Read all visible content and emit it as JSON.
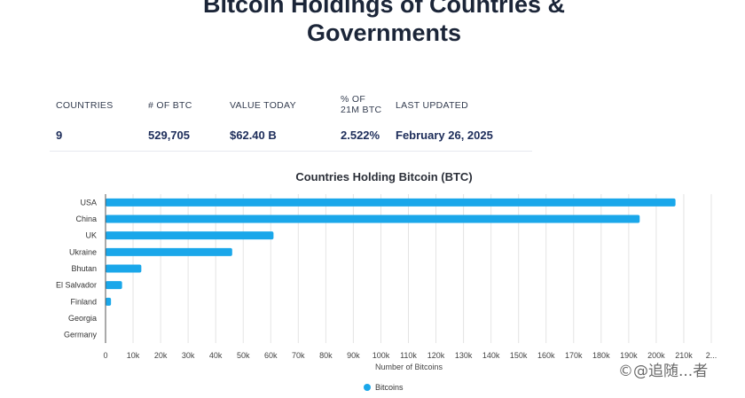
{
  "page": {
    "title_line1": "Bitcoin Holdings of Countries &",
    "title_line2": "Governments"
  },
  "stats": {
    "headers": {
      "countries": "COUNTRIES",
      "btc": "# OF BTC",
      "value": "VALUE TODAY",
      "pct_line1": "% OF",
      "pct_line2": "21M BTC",
      "updated": "LAST UPDATED"
    },
    "values": {
      "countries": "9",
      "btc": "529,705",
      "value": "$62.40 B",
      "pct": "2.522%",
      "updated": "February 26, 2025"
    }
  },
  "chart_data": {
    "type": "bar",
    "orientation": "horizontal",
    "title": "Countries Holding Bitcoin (BTC)",
    "xlabel": "Number of Bitcoins",
    "ylabel": "",
    "categories": [
      "USA",
      "China",
      "UK",
      "Ukraine",
      "Bhutan",
      "El Salvador",
      "Finland",
      "Georgia",
      "Germany"
    ],
    "series": [
      {
        "name": "Bitcoins",
        "values": [
          207000,
          194000,
          61000,
          46000,
          13000,
          6000,
          1981,
          66,
          0
        ]
      }
    ],
    "xlim": [
      0,
      220000
    ],
    "xticks": [
      "0",
      "10k",
      "20k",
      "30k",
      "40k",
      "50k",
      "60k",
      "70k",
      "80k",
      "90k",
      "100k",
      "110k",
      "120k",
      "130k",
      "140k",
      "150k",
      "160k",
      "170k",
      "180k",
      "190k",
      "200k",
      "210k",
      "2..."
    ],
    "grid": true,
    "legend": "bottom",
    "bar_color": "#1aa7ea"
  },
  "watermark": "©@追随...者"
}
